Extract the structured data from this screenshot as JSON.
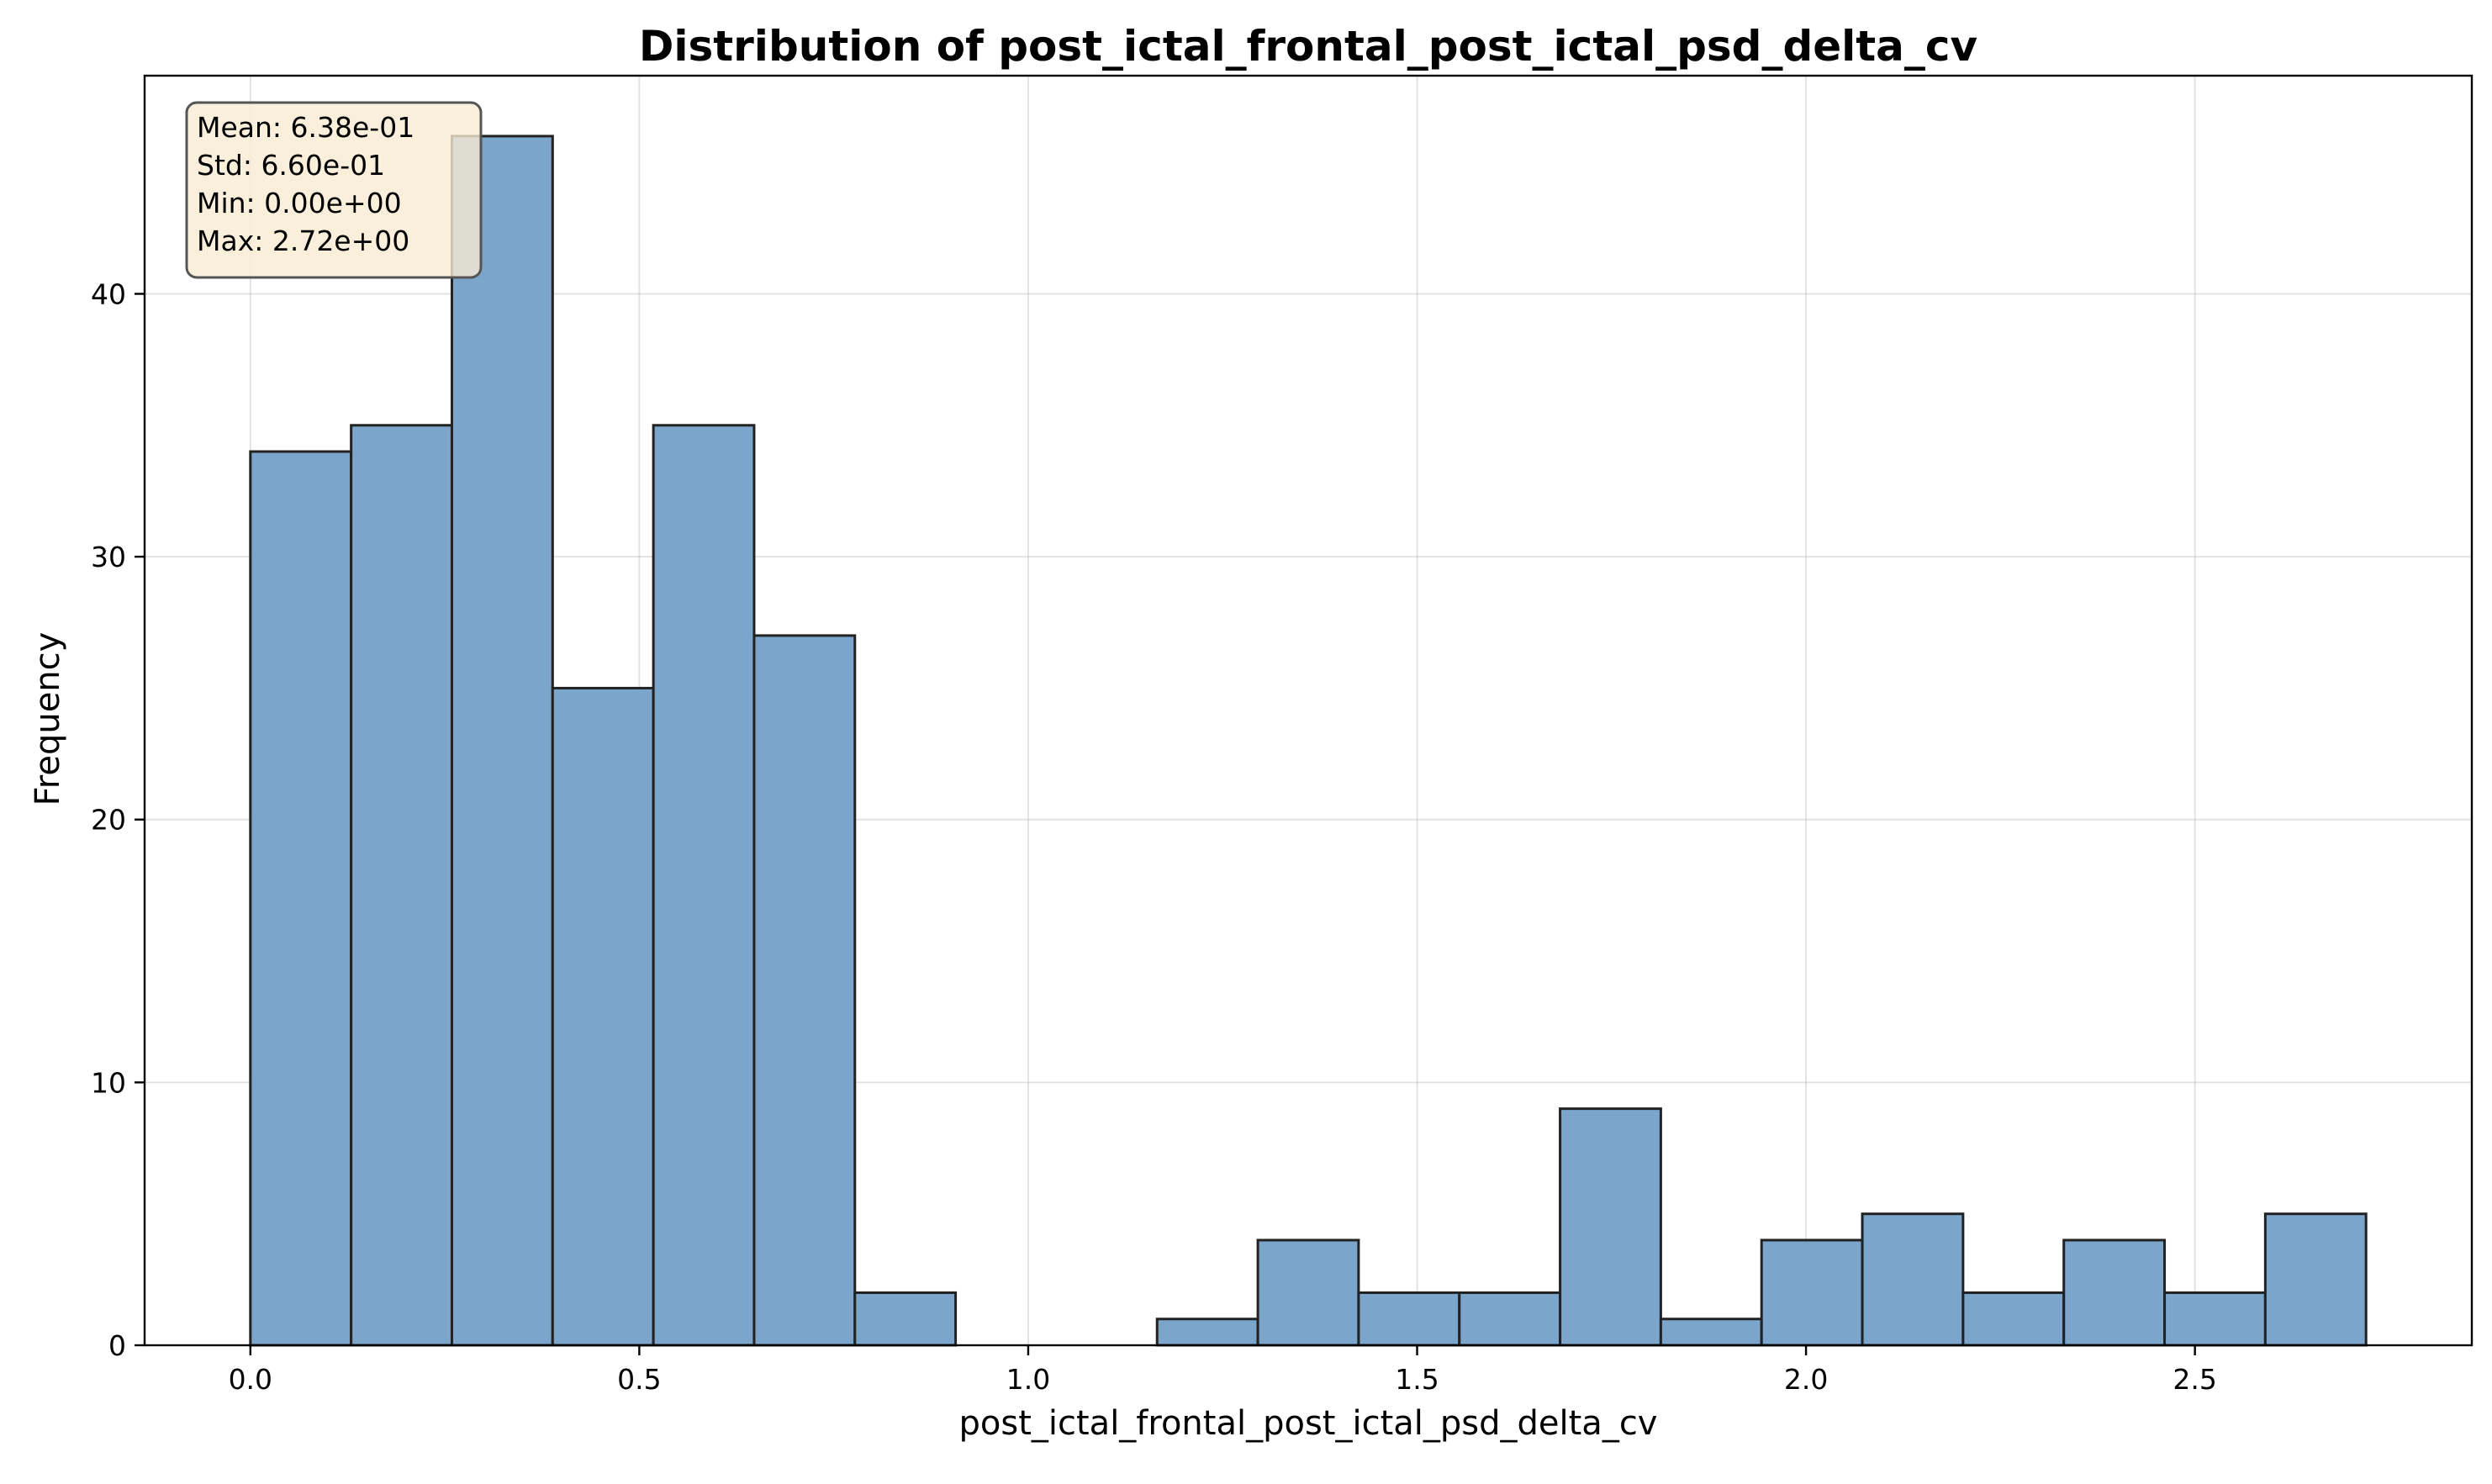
{
  "chart_data": {
    "type": "bar",
    "title": "Distribution of post_ictal_frontal_post_ictal_psd_delta_cv",
    "xlabel": "post_ictal_frontal_post_ictal_psd_delta_cv",
    "ylabel": "Frequency",
    "xlim": [
      -0.136,
      2.856
    ],
    "ylim": [
      0,
      48.3
    ],
    "xticks": [
      0.0,
      0.5,
      1.0,
      1.5,
      2.0,
      2.5
    ],
    "xtick_labels": [
      "0.0",
      "0.5",
      "1.0",
      "1.5",
      "2.0",
      "2.5"
    ],
    "yticks": [
      0,
      10,
      20,
      30,
      40
    ],
    "ytick_labels": [
      "0",
      "10",
      "20",
      "30",
      "40"
    ],
    "bin_start": 0.0,
    "bin_end": 2.72,
    "bins": 21,
    "values": [
      34,
      35,
      46,
      25,
      35,
      27,
      2,
      0,
      0,
      1,
      4,
      2,
      2,
      9,
      1,
      4,
      5,
      2,
      4,
      2,
      5
    ],
    "grid": true,
    "bar_color": "#7BA5CB",
    "edge_color": "#222222",
    "stats": [
      "Mean: 6.38e-01",
      "Std: 6.60e-01",
      "Min: 0.00e+00",
      "Max: 2.72e+00"
    ],
    "stats_box_color": "#F9EBD2",
    "stats_placement": "top-left"
  }
}
